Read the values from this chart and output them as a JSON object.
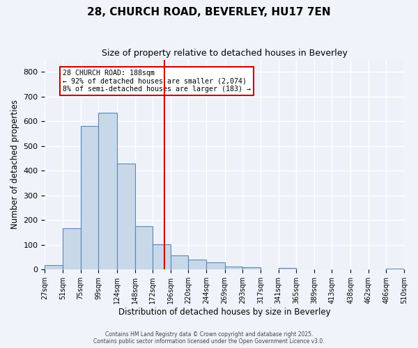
{
  "title": "28, CHURCH ROAD, BEVERLEY, HU17 7EN",
  "subtitle": "Size of property relative to detached houses in Beverley",
  "xlabel": "Distribution of detached houses by size in Beverley",
  "ylabel": "Number of detached properties",
  "bar_color": "#c8d8e8",
  "bar_edge_color": "#5588bb",
  "background_color": "#eef2f8",
  "grid_color": "#ffffff",
  "bin_labels": [
    "27sqm",
    "51sqm",
    "75sqm",
    "99sqm",
    "124sqm",
    "148sqm",
    "172sqm",
    "196sqm",
    "220sqm",
    "244sqm",
    "269sqm",
    "293sqm",
    "317sqm",
    "341sqm",
    "365sqm",
    "389sqm",
    "413sqm",
    "438sqm",
    "462sqm",
    "486sqm",
    "510sqm"
  ],
  "bar_heights": [
    17,
    168,
    582,
    635,
    430,
    175,
    103,
    57,
    40,
    30,
    12,
    10,
    0,
    7,
    0,
    0,
    0,
    0,
    0,
    5
  ],
  "bin_edges": [
    27,
    51,
    75,
    99,
    124,
    148,
    172,
    196,
    220,
    244,
    269,
    293,
    317,
    341,
    365,
    389,
    413,
    438,
    462,
    486,
    510
  ],
  "vline_x": 188,
  "vline_color": "#cc0000",
  "annotation_text": "28 CHURCH ROAD: 188sqm\n← 92% of detached houses are smaller (2,074)\n8% of semi-detached houses are larger (183) →",
  "annotation_box_color": "#cc0000",
  "annotation_text_color": "#000000",
  "ylim": [
    0,
    850
  ],
  "yticks": [
    0,
    100,
    200,
    300,
    400,
    500,
    600,
    700,
    800
  ],
  "footer_line1": "Contains HM Land Registry data © Crown copyright and database right 2025.",
  "footer_line2": "Contains public sector information licensed under the Open Government Licence v3.0."
}
